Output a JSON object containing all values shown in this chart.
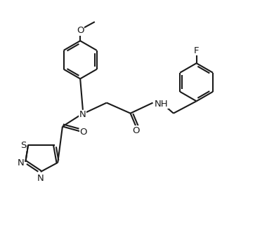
{
  "bg_color": "#ffffff",
  "line_color": "#1a1a1a",
  "line_width": 1.5,
  "font_size": 9.5,
  "fig_width": 3.9,
  "fig_height": 3.21,
  "dpi": 100,
  "xlim": [
    0,
    10
  ],
  "ylim": [
    0,
    8.5
  ]
}
